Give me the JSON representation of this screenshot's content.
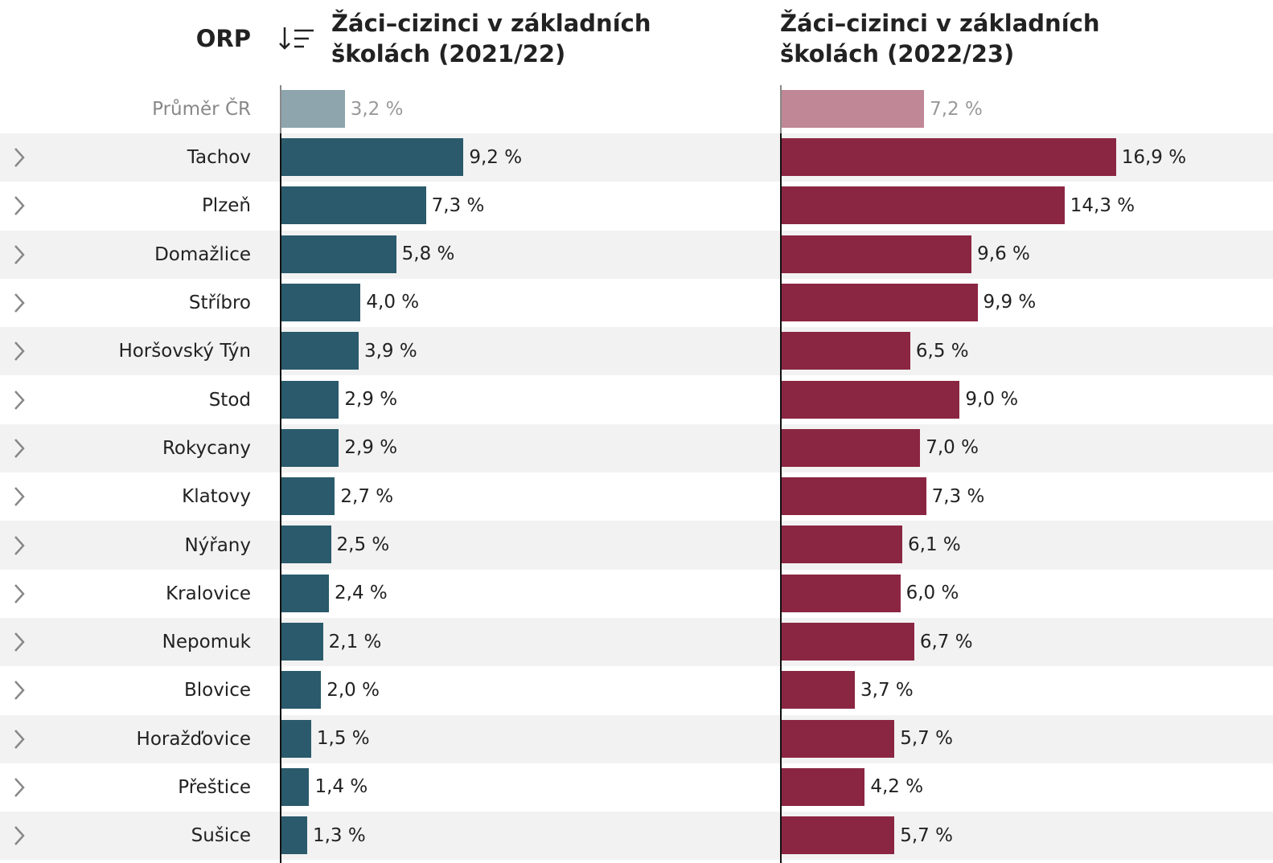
{
  "chart_data": {
    "type": "bar",
    "column_header": "ORP",
    "categories": [
      "Tachov",
      "Plzeň",
      "Domažlice",
      "Stříbro",
      "Horšovský Týn",
      "Stod",
      "Rokycany",
      "Klatovy",
      "Nýřany",
      "Kralovice",
      "Nepomuk",
      "Blovice",
      "Horažďovice",
      "Přeštice",
      "Sušice"
    ],
    "series": [
      {
        "name": "Žáci–cizinci v základních školách (2021/22)",
        "color": "#2a5a6b",
        "values": [
          9.2,
          7.3,
          5.8,
          4.0,
          3.9,
          2.9,
          2.9,
          2.7,
          2.5,
          2.4,
          2.1,
          2.0,
          1.5,
          1.4,
          1.3
        ],
        "value_labels": [
          "9,2 %",
          "7,3 %",
          "5,8 %",
          "4,0 %",
          "3,9 %",
          "2,9 %",
          "2,9 %",
          "2,7 %",
          "2,5 %",
          "2,4 %",
          "2,1 %",
          "2,0 %",
          "1,5 %",
          "1,4 %",
          "1,3 %"
        ]
      },
      {
        "name": "Žáci–cizinci v základních školách (2022/23)",
        "color": "#8b2642",
        "values": [
          16.9,
          14.3,
          9.6,
          9.9,
          6.5,
          9.0,
          7.0,
          7.3,
          6.1,
          6.0,
          6.7,
          3.7,
          5.7,
          4.2,
          5.7
        ],
        "value_labels": [
          "16,9 %",
          "14,3 %",
          "9,6 %",
          "9,9 %",
          "6,5 %",
          "9,0 %",
          "7,0 %",
          "7,3 %",
          "6,1 %",
          "6,0 %",
          "6,7 %",
          "3,7 %",
          "5,7 %",
          "4,2 %",
          "5,7 %"
        ]
      }
    ],
    "average": {
      "label": "Průměr ČR",
      "values": [
        3.2,
        7.2
      ],
      "value_labels": [
        "3,2 %",
        "7,2 %"
      ],
      "colors": [
        "#8ea5ae",
        "#c08796"
      ]
    }
  }
}
